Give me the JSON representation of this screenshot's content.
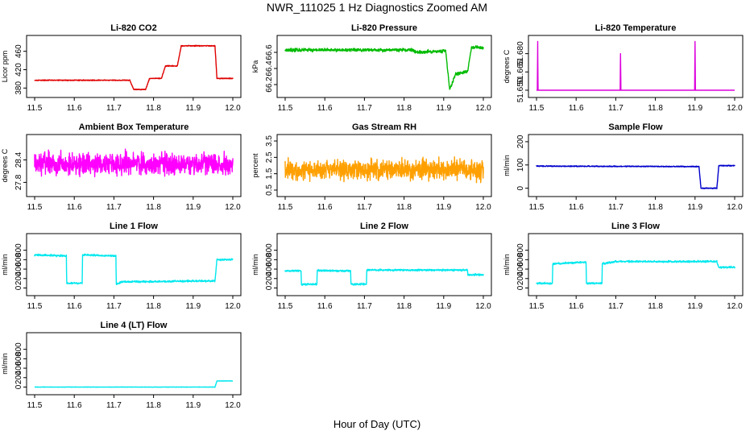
{
  "figure": {
    "title": "NWR_111025  1 Hz Diagnostics Zoomed AM",
    "xlabel": "Hour of Day (UTC)"
  },
  "chart_data": [
    {
      "id": "co2",
      "type": "line",
      "title": "Li-820 CO2",
      "ylabel": "Licor ppm",
      "color": "#e00000",
      "xlim": [
        11.5,
        12.0
      ],
      "ylim": [
        370,
        484
      ],
      "yticks": [
        {
          "v": 380,
          "label": "380"
        },
        {
          "v": 420,
          "label": "420"
        },
        {
          "v": 460,
          "label": "460"
        }
      ],
      "x": [
        11.5,
        11.74,
        11.75,
        11.78,
        11.79,
        11.82,
        11.83,
        11.86,
        11.87,
        11.955,
        11.96,
        12.0
      ],
      "y": [
        397,
        397,
        377,
        377,
        401,
        401,
        428,
        428,
        472,
        472,
        401,
        401
      ],
      "noise": 0.7
    },
    {
      "id": "pressure",
      "type": "line",
      "title": "Li-820 Pressure",
      "ylabel": "kPa",
      "color": "#00bb00",
      "xlim": [
        11.5,
        12.0
      ],
      "ylim": [
        66.1,
        66.75
      ],
      "yticks": [
        {
          "v": 66.2,
          "label": "66.2"
        },
        {
          "v": 66.4,
          "label": "66.4"
        },
        {
          "v": 66.6,
          "label": "66.6"
        }
      ],
      "x": [
        11.5,
        11.82,
        11.83,
        11.905,
        11.915,
        11.93,
        11.96,
        11.97,
        12.0
      ],
      "y": [
        66.63,
        66.63,
        66.6,
        66.62,
        66.14,
        66.33,
        66.36,
        66.66,
        66.66
      ],
      "noise": 0.015
    },
    {
      "id": "licor-temp",
      "type": "line",
      "title": "Li-820 Temperature",
      "ylabel": "degrees C",
      "color": "#dd00dd",
      "xlim": [
        11.5,
        12.0
      ],
      "ylim": [
        51.648,
        51.691
      ],
      "yticks": [
        {
          "v": 51.65,
          "label": "51.650"
        },
        {
          "v": 51.665,
          "label": "51.665"
        },
        {
          "v": 51.68,
          "label": "51.680"
        }
      ],
      "x": [
        11.5,
        11.502,
        11.503,
        11.504,
        11.711,
        11.712,
        11.713,
        11.899,
        11.9,
        11.901,
        12.0
      ],
      "y": [
        51.65,
        51.65,
        51.69,
        51.65,
        51.65,
        51.68,
        51.65,
        51.65,
        51.69,
        51.65,
        51.65
      ],
      "noise": 0
    },
    {
      "id": "box-temp",
      "type": "line",
      "title": "Ambient Box Temperature",
      "ylabel": "degrees C",
      "color": "#ff00ff",
      "xlim": [
        11.5,
        12.0
      ],
      "ylim": [
        27.55,
        28.95
      ],
      "yticks": [
        {
          "v": 27.8,
          "label": "27.8"
        },
        {
          "v": 28.4,
          "label": "28.4"
        }
      ],
      "x": [
        11.5,
        12.0
      ],
      "y": [
        28.3,
        28.3
      ],
      "noise": 0.22
    },
    {
      "id": "rh",
      "type": "line",
      "title": "Gas Stream RH",
      "ylabel": "percent",
      "color": "#ffa000",
      "xlim": [
        11.5,
        12.0
      ],
      "ylim": [
        0.4,
        3.6
      ],
      "yticks": [
        {
          "v": 0.5,
          "label": "0.5"
        },
        {
          "v": 1.5,
          "label": "1.5"
        },
        {
          "v": 2.5,
          "label": "2.5"
        },
        {
          "v": 3.5,
          "label": "3.5"
        }
      ],
      "x": [
        11.5,
        12.0
      ],
      "y": [
        1.75,
        1.75
      ],
      "noise": 0.45
    },
    {
      "id": "sample-flow",
      "type": "line",
      "title": "Sample Flow",
      "ylabel": "ml/min",
      "color": "#0000cc",
      "xlim": [
        11.5,
        12.0
      ],
      "ylim": [
        -15,
        210
      ],
      "yticks": [
        {
          "v": 0,
          "label": "0"
        },
        {
          "v": 100,
          "label": "100"
        },
        {
          "v": 200,
          "label": "200"
        }
      ],
      "x": [
        11.5,
        11.91,
        11.915,
        11.955,
        11.96,
        12.0
      ],
      "y": [
        95,
        93,
        0,
        0,
        97,
        97
      ],
      "noise": 1.5
    },
    {
      "id": "line1-flow",
      "type": "line",
      "title": "Line 1 Flow",
      "ylabel": "ml/min",
      "color": "#00e8ee",
      "xlim": [
        11.5,
        12.0
      ],
      "ylim": [
        -60,
        1050
      ],
      "yticks": [
        {
          "v": 0,
          "label": "0"
        },
        {
          "v": 200,
          "label": "200"
        },
        {
          "v": 400,
          "label": "400"
        },
        {
          "v": 600,
          "label": "600"
        },
        {
          "v": 800,
          "label": "800"
        }
      ],
      "x": [
        11.5,
        11.58,
        11.581,
        11.62,
        11.621,
        11.705,
        11.706,
        11.72,
        11.955,
        11.96,
        12.0
      ],
      "y": [
        700,
        680,
        100,
        100,
        700,
        680,
        80,
        130,
        150,
        600,
        600
      ],
      "noise": 14
    },
    {
      "id": "line2-flow",
      "type": "line",
      "title": "Line 2 Flow",
      "ylabel": "ml/min",
      "color": "#00e8ee",
      "xlim": [
        11.5,
        12.0
      ],
      "ylim": [
        -60,
        1050
      ],
      "yticks": [
        {
          "v": 0,
          "label": "0"
        },
        {
          "v": 200,
          "label": "200"
        },
        {
          "v": 400,
          "label": "400"
        },
        {
          "v": 600,
          "label": "600"
        },
        {
          "v": 800,
          "label": "800"
        }
      ],
      "x": [
        11.5,
        11.54,
        11.541,
        11.58,
        11.581,
        11.665,
        11.666,
        11.705,
        11.706,
        11.96,
        11.961,
        12.0
      ],
      "y": [
        360,
        360,
        80,
        80,
        370,
        360,
        80,
        80,
        380,
        380,
        280,
        280
      ],
      "noise": 14
    },
    {
      "id": "line3-flow",
      "type": "line",
      "title": "Line 3 Flow",
      "ylabel": "ml/min",
      "color": "#00e8ee",
      "xlim": [
        11.5,
        12.0
      ],
      "ylim": [
        -60,
        1050
      ],
      "yticks": [
        {
          "v": 0,
          "label": "0"
        },
        {
          "v": 200,
          "label": "200"
        },
        {
          "v": 400,
          "label": "400"
        },
        {
          "v": 600,
          "label": "600"
        },
        {
          "v": 800,
          "label": "800"
        }
      ],
      "x": [
        11.5,
        11.54,
        11.541,
        11.625,
        11.626,
        11.665,
        11.666,
        11.7,
        11.955,
        11.96,
        12.0
      ],
      "y": [
        100,
        100,
        510,
        550,
        100,
        100,
        510,
        560,
        560,
        440,
        440
      ],
      "noise": 14
    },
    {
      "id": "line4-flow",
      "type": "line",
      "title": "Line 4 (LT) Flow",
      "ylabel": "ml/min",
      "color": "#00e8ee",
      "xlim": [
        11.5,
        12.0
      ],
      "ylim": [
        -60,
        1050
      ],
      "yticks": [
        {
          "v": 0,
          "label": "0"
        },
        {
          "v": 200,
          "label": "200"
        },
        {
          "v": 400,
          "label": "400"
        },
        {
          "v": 600,
          "label": "600"
        },
        {
          "v": 800,
          "label": "800"
        }
      ],
      "x": [
        11.5,
        11.955,
        11.96,
        12.0
      ],
      "y": [
        0,
        0,
        130,
        130
      ],
      "noise": 3
    }
  ],
  "xticks": [
    {
      "v": 11.5,
      "label": "11.5"
    },
    {
      "v": 11.6,
      "label": "11.6"
    },
    {
      "v": 11.7,
      "label": "11.7"
    },
    {
      "v": 11.8,
      "label": "11.8"
    },
    {
      "v": 11.9,
      "label": "11.9"
    },
    {
      "v": 12.0,
      "label": "12.0"
    }
  ]
}
